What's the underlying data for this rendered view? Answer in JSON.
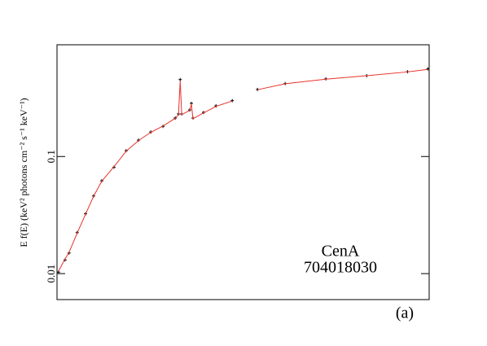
{
  "chart_data": {
    "type": "line",
    "y_label": "E f(E) (keV² photons cm⁻² s⁻¹ keV⁻¹)",
    "annotations": [
      "CenA",
      "704018030",
      "(a)"
    ],
    "xlog": true,
    "ylog": true,
    "xlim": [
      1,
      127
    ],
    "ylim": [
      0.006,
      0.9
    ],
    "yticks": [
      0.01,
      0.1
    ],
    "series": [
      {
        "color": "#000000",
        "style": "points",
        "x": [
          1.02,
          1.11,
          1.17,
          1.3,
          1.45,
          1.61,
          1.79,
          2.1,
          2.46,
          2.89,
          3.39,
          3.97,
          4.66,
          4.86,
          4.97,
          5.07,
          5.63,
          5.75,
          5.87,
          6.74,
          7.92,
          9.79,
          13.6,
          19.5,
          33.1,
          56.3,
          95.8,
          125
        ],
        "values": [
          0.0103,
          0.0131,
          0.015,
          0.0224,
          0.0324,
          0.046,
          0.062,
          0.081,
          0.112,
          0.138,
          0.162,
          0.181,
          0.213,
          0.231,
          0.454,
          0.231,
          0.25,
          0.284,
          0.213,
          0.238,
          0.271,
          0.3,
          0.374,
          0.42,
          0.46,
          0.49,
          0.53,
          0.56
        ]
      },
      {
        "color": "#e8312a",
        "style": "line",
        "x": [
          1.02,
          1.11,
          1.17,
          1.3,
          1.45,
          1.61,
          1.79,
          2.1,
          2.46,
          2.89,
          3.39,
          3.97,
          4.66,
          4.86,
          4.97,
          5.07,
          5.63,
          5.75,
          5.87,
          6.74,
          7.92,
          9.79,
          11.5,
          13.6,
          19.5,
          33.1,
          56.3,
          95.8,
          125
        ],
        "values": [
          0.0105,
          0.0133,
          0.0152,
          0.0222,
          0.0322,
          0.0458,
          0.0615,
          0.082,
          0.111,
          0.137,
          0.161,
          0.182,
          0.212,
          0.228,
          0.44,
          0.228,
          0.248,
          0.28,
          0.21,
          0.236,
          0.268,
          0.298,
          null,
          0.372,
          0.418,
          0.458,
          0.49,
          0.528,
          0.555
        ]
      }
    ]
  }
}
